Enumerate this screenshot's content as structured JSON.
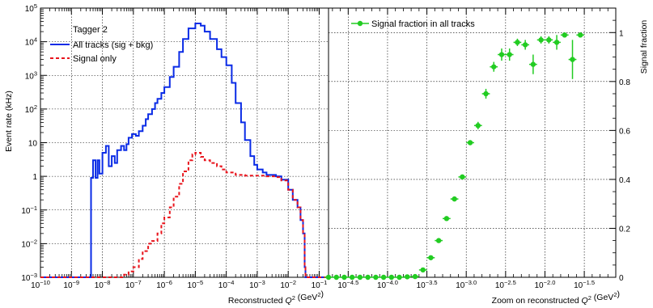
{
  "chart_data": [
    {
      "type": "line",
      "panel": "left",
      "xlabel": "Reconstructed Q^2 (GeV^2)",
      "ylabel": "Event rate (kHz)",
      "x_scale": "log",
      "y_scale": "log",
      "xlim": [
        1e-10,
        0.2
      ],
      "ylim": [
        0.001,
        100000
      ],
      "grid": true,
      "x_ticks": [
        {
          "value": 1e-10,
          "base": "10",
          "exp": "−10"
        },
        {
          "value": 1e-09,
          "base": "10",
          "exp": "−9"
        },
        {
          "value": 1e-08,
          "base": "10",
          "exp": "−8"
        },
        {
          "value": 1e-07,
          "base": "10",
          "exp": "−7"
        },
        {
          "value": 1e-06,
          "base": "10",
          "exp": "−6"
        },
        {
          "value": 1e-05,
          "base": "10",
          "exp": "−5"
        },
        {
          "value": 0.0001,
          "base": "10",
          "exp": "−4"
        },
        {
          "value": 0.001,
          "base": "10",
          "exp": "−3"
        },
        {
          "value": 0.01,
          "base": "10",
          "exp": "−2"
        },
        {
          "value": 0.1,
          "base": "10",
          "exp": "−1"
        }
      ],
      "y_ticks": [
        {
          "value": 100000,
          "base": "10",
          "exp": "5"
        },
        {
          "value": 10000,
          "base": "10",
          "exp": "4"
        },
        {
          "value": 1000,
          "base": "10",
          "exp": "3"
        },
        {
          "value": 100,
          "base": "10",
          "exp": "2"
        },
        {
          "value": 10,
          "base": "10",
          "exp": ""
        },
        {
          "value": 1,
          "base": "1",
          "exp": ""
        },
        {
          "value": 0.1,
          "base": "10",
          "exp": "−1"
        },
        {
          "value": 0.01,
          "base": "10",
          "exp": "−2"
        },
        {
          "value": 0.001,
          "base": "10",
          "exp": "−3"
        }
      ],
      "legend": {
        "title": "Tagger 2",
        "placement": "top-left",
        "entries": [
          {
            "label": "All tracks (sig + bkg)",
            "color": "#0a2be6",
            "style": "solid"
          },
          {
            "label": "Signal only",
            "color": "#e8141c",
            "style": "dashed"
          }
        ]
      },
      "series": [
        {
          "name": "All tracks (sig + bkg)",
          "color": "#0a2be6",
          "style": "solid-step",
          "points": [
            [
              1e-10,
              0.001
            ],
            [
              4e-09,
              0.001
            ],
            [
              4.2e-09,
              0.001
            ],
            [
              4.3e-09,
              0.9
            ],
            [
              5e-09,
              3
            ],
            [
              6e-09,
              0.9
            ],
            [
              7e-09,
              3
            ],
            [
              8e-09,
              1.2
            ],
            [
              1e-08,
              5
            ],
            [
              1.3e-08,
              8
            ],
            [
              1.6e-08,
              2
            ],
            [
              2e-08,
              4
            ],
            [
              2.5e-08,
              2.5
            ],
            [
              3e-08,
              6
            ],
            [
              4e-08,
              8
            ],
            [
              5e-08,
              6
            ],
            [
              6e-08,
              9
            ],
            [
              7e-08,
              14
            ],
            [
              9e-08,
              18
            ],
            [
              1.2e-07,
              16
            ],
            [
              1.5e-07,
              22
            ],
            [
              2e-07,
              32
            ],
            [
              2.5e-07,
              50
            ],
            [
              3e-07,
              70
            ],
            [
              4e-07,
              100
            ],
            [
              5e-07,
              150
            ],
            [
              6e-07,
              200
            ],
            [
              8e-07,
              300
            ],
            [
              1e-06,
              450
            ],
            [
              1.5e-06,
              900
            ],
            [
              2e-06,
              1800
            ],
            [
              3e-06,
              5000
            ],
            [
              4e-06,
              12000
            ],
            [
              6e-06,
              25000
            ],
            [
              1e-05,
              35000
            ],
            [
              1.5e-05,
              30000
            ],
            [
              2e-05,
              20000
            ],
            [
              3e-05,
              12000
            ],
            [
              5e-05,
              6000
            ],
            [
              7e-05,
              3500
            ],
            [
              0.0001,
              2000
            ],
            [
              0.00015,
              600
            ],
            [
              0.0002,
              150
            ],
            [
              0.0003,
              40
            ],
            [
              0.0004,
              12
            ],
            [
              0.0006,
              4
            ],
            [
              0.0008,
              2.2
            ],
            [
              0.001,
              1.6
            ],
            [
              0.0015,
              1.3
            ],
            [
              0.002,
              1.1
            ],
            [
              0.004,
              1.0
            ],
            [
              0.006,
              0.8
            ],
            [
              0.01,
              0.4
            ],
            [
              0.014,
              0.2
            ],
            [
              0.02,
              0.12
            ],
            [
              0.025,
              0.05
            ],
            [
              0.03,
              0.02
            ],
            [
              0.034,
              0.002
            ],
            [
              0.036,
              0.001
            ],
            [
              0.2,
              0.001
            ]
          ]
        },
        {
          "name": "Signal only",
          "color": "#e8141c",
          "style": "dashed-step",
          "points": [
            [
              1e-10,
              0.001
            ],
            [
              4e-08,
              0.001
            ],
            [
              5e-08,
              0.0012
            ],
            [
              7e-08,
              0.0015
            ],
            [
              1e-07,
              0.002
            ],
            [
              1.5e-07,
              0.0035
            ],
            [
              2e-07,
              0.006
            ],
            [
              3e-07,
              0.01
            ],
            [
              4e-07,
              0.012
            ],
            [
              6e-07,
              0.02
            ],
            [
              8e-07,
              0.04
            ],
            [
              1e-06,
              0.06
            ],
            [
              1.5e-06,
              0.12
            ],
            [
              2e-06,
              0.25
            ],
            [
              3e-06,
              0.6
            ],
            [
              4e-06,
              1.4
            ],
            [
              6e-06,
              3
            ],
            [
              8e-06,
              4.5
            ],
            [
              1e-05,
              5
            ],
            [
              1.5e-05,
              3.8
            ],
            [
              2e-05,
              3
            ],
            [
              3e-05,
              2.5
            ],
            [
              5e-05,
              2.0
            ],
            [
              7e-05,
              1.6
            ],
            [
              0.0001,
              1.3
            ],
            [
              0.0002,
              1.1
            ],
            [
              0.0004,
              1.05
            ],
            [
              0.001,
              1.05
            ],
            [
              0.002,
              1.0
            ],
            [
              0.004,
              0.95
            ],
            [
              0.006,
              0.75
            ],
            [
              0.01,
              0.4
            ],
            [
              0.014,
              0.2
            ],
            [
              0.02,
              0.12
            ],
            [
              0.025,
              0.05
            ],
            [
              0.03,
              0.02
            ],
            [
              0.034,
              0.002
            ],
            [
              0.036,
              0.001
            ],
            [
              0.2,
              0.001
            ]
          ]
        }
      ]
    },
    {
      "type": "scatter",
      "panel": "right",
      "xlabel": "Zoom on reconstructed Q^2 (GeV^2)",
      "ylabel": "Signal fraction",
      "x_scale": "log",
      "y_scale": "linear",
      "xlim": [
        -4.75,
        -1.1
      ],
      "ylim": [
        0,
        1.1
      ],
      "grid": true,
      "x_ticks": [
        {
          "value": -4.5,
          "base": "10",
          "exp": "−4.5"
        },
        {
          "value": -4.0,
          "base": "10",
          "exp": "−4.0"
        },
        {
          "value": -3.5,
          "base": "10",
          "exp": "−3.5"
        },
        {
          "value": -3.0,
          "base": "10",
          "exp": "−3.0"
        },
        {
          "value": -2.5,
          "base": "10",
          "exp": "−2.5"
        },
        {
          "value": -2.0,
          "base": "10",
          "exp": "−2.0"
        },
        {
          "value": -1.5,
          "base": "10",
          "exp": "−1.5"
        }
      ],
      "y_ticks": [
        {
          "value": 0,
          "label": "0"
        },
        {
          "value": 0.2,
          "label": "0.2"
        },
        {
          "value": 0.4,
          "label": "0.4"
        },
        {
          "value": 0.6,
          "label": "0.6"
        },
        {
          "value": 0.8,
          "label": "0.8"
        },
        {
          "value": 1.0,
          "label": "1"
        }
      ],
      "legend": {
        "placement": "top-left",
        "entries": [
          {
            "label": "Signal fraction in all tracks",
            "color": "#22cc22",
            "style": "marker"
          }
        ]
      },
      "series": [
        {
          "name": "Signal fraction in all tracks",
          "color": "#22cc22",
          "x_unit": "log10(Q^2)",
          "bin_half_width": 0.05,
          "points": [
            {
              "x": -4.75,
              "y": 0.0,
              "err": 0.0
            },
            {
              "x": -4.65,
              "y": 0.0,
              "err": 0.0
            },
            {
              "x": -4.55,
              "y": 0.0,
              "err": 0.0
            },
            {
              "x": -4.45,
              "y": 0.0,
              "err": 0.0
            },
            {
              "x": -4.35,
              "y": 0.0,
              "err": 0.0
            },
            {
              "x": -4.25,
              "y": 0.0,
              "err": 0.0
            },
            {
              "x": -4.15,
              "y": 0.0,
              "err": 0.0
            },
            {
              "x": -4.05,
              "y": 0.0,
              "err": 0.0
            },
            {
              "x": -3.95,
              "y": 0.0,
              "err": 0.0
            },
            {
              "x": -3.85,
              "y": 0.0,
              "err": 0.0
            },
            {
              "x": -3.75,
              "y": 0.002,
              "err": 0.0
            },
            {
              "x": -3.65,
              "y": 0.003,
              "err": 0.0
            },
            {
              "x": -3.55,
              "y": 0.03,
              "err": 0.003
            },
            {
              "x": -3.45,
              "y": 0.08,
              "err": 0.005
            },
            {
              "x": -3.35,
              "y": 0.15,
              "err": 0.006
            },
            {
              "x": -3.25,
              "y": 0.24,
              "err": 0.006
            },
            {
              "x": -3.15,
              "y": 0.32,
              "err": 0.007
            },
            {
              "x": -3.05,
              "y": 0.41,
              "err": 0.008
            },
            {
              "x": -2.95,
              "y": 0.55,
              "err": 0.01
            },
            {
              "x": -2.85,
              "y": 0.62,
              "err": 0.015
            },
            {
              "x": -2.75,
              "y": 0.75,
              "err": 0.02
            },
            {
              "x": -2.65,
              "y": 0.86,
              "err": 0.02
            },
            {
              "x": -2.55,
              "y": 0.91,
              "err": 0.025
            },
            {
              "x": -2.45,
              "y": 0.91,
              "err": 0.025
            },
            {
              "x": -2.35,
              "y": 0.96,
              "err": 0.015
            },
            {
              "x": -2.25,
              "y": 0.95,
              "err": 0.02
            },
            {
              "x": -2.15,
              "y": 0.87,
              "err": 0.04
            },
            {
              "x": -2.05,
              "y": 0.97,
              "err": 0.015
            },
            {
              "x": -1.95,
              "y": 0.97,
              "err": 0.015
            },
            {
              "x": -1.85,
              "y": 0.96,
              "err": 0.03
            },
            {
              "x": -1.75,
              "y": 0.99,
              "err": 0.01
            },
            {
              "x": -1.65,
              "y": 0.89,
              "err": 0.08
            },
            {
              "x": -1.55,
              "y": 0.99,
              "err": 0.01
            }
          ]
        }
      ]
    }
  ]
}
